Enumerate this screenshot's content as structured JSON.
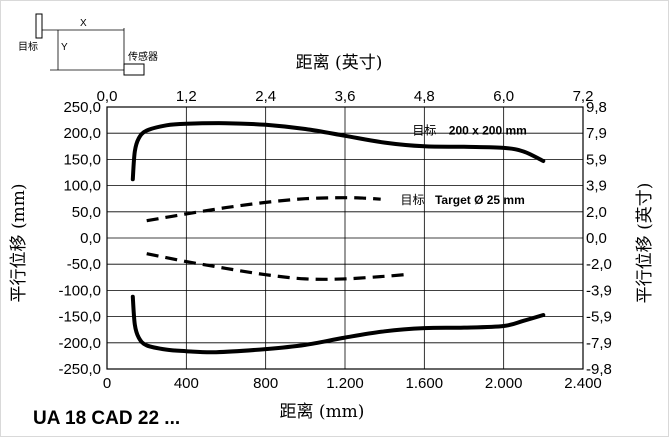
{
  "chart_data": {
    "type": "line",
    "model_label": "UA 18 CAD 22 ...",
    "x_bottom": {
      "title": "距离 (mm)",
      "range": [
        0,
        2400
      ],
      "ticks": [
        0,
        400,
        800,
        1200,
        1600,
        2000,
        2400
      ],
      "tick_labels": [
        "0",
        "400",
        "800",
        "1.200",
        "1.600",
        "2.000",
        "2.400"
      ]
    },
    "x_top": {
      "title": "距离 (英寸)",
      "tick_labels": [
        "0,0",
        "1,2",
        "2,4",
        "3,6",
        "4,8",
        "6,0",
        "7,2"
      ]
    },
    "y_left": {
      "title": "平行位移 (mm)",
      "range": [
        -250,
        250
      ],
      "ticks": [
        250,
        200,
        150,
        100,
        50,
        0,
        -50,
        -100,
        -150,
        -200,
        -250
      ],
      "tick_labels": [
        "250,0",
        "200,0",
        "150,0",
        "100,0",
        "50,0",
        "0,0",
        "-50,0",
        "-100,0",
        "-150,0",
        "-200,0",
        "-250,0"
      ]
    },
    "y_right": {
      "title": "平行位移 (英寸)",
      "tick_labels": [
        "9,8",
        "7,9",
        "5,9",
        "3,9",
        "2,0",
        "0,0",
        "-2,0",
        "-3,9",
        "-5,9",
        "-7,9",
        "-9,8"
      ]
    },
    "grid": true,
    "series": [
      {
        "name": "200 x 200 mm",
        "style": "solid",
        "upper": [
          [
            130,
            112
          ],
          [
            140,
            165
          ],
          [
            160,
            190
          ],
          [
            200,
            205
          ],
          [
            300,
            215
          ],
          [
            400,
            218
          ],
          [
            600,
            219
          ],
          [
            800,
            216
          ],
          [
            1000,
            208
          ],
          [
            1200,
            195
          ],
          [
            1400,
            182
          ],
          [
            1600,
            175
          ],
          [
            1800,
            174
          ],
          [
            2000,
            172
          ],
          [
            2100,
            165
          ],
          [
            2200,
            147
          ]
        ],
        "lower": [
          [
            130,
            -112
          ],
          [
            140,
            -165
          ],
          [
            160,
            -190
          ],
          [
            200,
            -205
          ],
          [
            300,
            -213
          ],
          [
            400,
            -216
          ],
          [
            550,
            -218
          ],
          [
            800,
            -212
          ],
          [
            1000,
            -204
          ],
          [
            1200,
            -190
          ],
          [
            1400,
            -178
          ],
          [
            1600,
            -172
          ],
          [
            1800,
            -171
          ],
          [
            2000,
            -168
          ],
          [
            2100,
            -158
          ],
          [
            2200,
            -147
          ]
        ]
      },
      {
        "name": "Target Ø 25 mm",
        "style": "dashed",
        "upper": [
          [
            200,
            33
          ],
          [
            400,
            46
          ],
          [
            600,
            58
          ],
          [
            800,
            68
          ],
          [
            1000,
            75
          ],
          [
            1200,
            77
          ],
          [
            1300,
            76
          ],
          [
            1380,
            74
          ]
        ],
        "lower": [
          [
            200,
            -30
          ],
          [
            400,
            -45
          ],
          [
            600,
            -58
          ],
          [
            800,
            -70
          ],
          [
            1000,
            -78
          ],
          [
            1200,
            -78
          ],
          [
            1400,
            -73
          ],
          [
            1500,
            -70
          ]
        ]
      }
    ],
    "annotations": [
      {
        "text": "目标",
        "anchor_x": 1540,
        "anchor_y": 207
      },
      {
        "text": "200 x 200 mm",
        "anchor_x": 1920,
        "anchor_y": 207
      },
      {
        "text": "目标",
        "anchor_x": 1480,
        "anchor_y": 74
      },
      {
        "text": "Target Ø 25 mm",
        "anchor_x": 1880,
        "anchor_y": 74
      }
    ]
  },
  "diagram": {
    "target_label": "目标",
    "sensor_label": "传感器",
    "x_label": "X",
    "y_label": "Y"
  }
}
